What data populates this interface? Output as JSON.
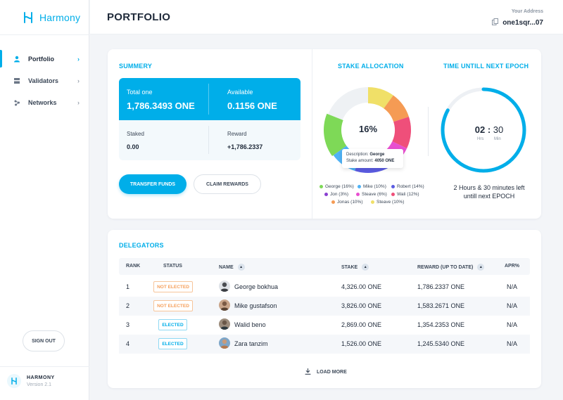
{
  "app": {
    "name": "Harmony"
  },
  "sidebar": {
    "items": [
      {
        "label": "Portfolio",
        "icon": "user-icon",
        "active": true
      },
      {
        "label": "Validators",
        "icon": "validators-icon",
        "active": false
      },
      {
        "label": "Networks",
        "icon": "network-icon",
        "active": false
      }
    ],
    "sign_out_label": "SIGN OUT",
    "footer": {
      "brand": "HARMONY",
      "version": "Version 2.1"
    }
  },
  "header": {
    "title": "PORTFOLIO",
    "address_label": "Your Address",
    "address_value": "one1sqr...07"
  },
  "summary": {
    "title": "SUMMERY",
    "total_label": "Total one",
    "total_value": "1,786.3493 ONE",
    "available_label": "Available",
    "available_value": "0.1156 ONE",
    "staked_label": "Staked",
    "staked_value": "0.00",
    "reward_label": "Reward",
    "reward_value": "+1,786.2337",
    "transfer_label": "TRANSFER FUNDS",
    "claim_label": "CLAIM REWARDS"
  },
  "stake": {
    "title": "STAKE ALLOCATION",
    "center_label": "16%",
    "tooltip_desc_label": "Description:",
    "tooltip_desc_value": "George",
    "tooltip_amount_label": "Stake amount:",
    "tooltip_amount_value": "4050 ONE",
    "legend": [
      {
        "label": "George (16%)",
        "color": "#7ed957"
      },
      {
        "label": "Mike (10%)",
        "color": "#4fb3f6"
      },
      {
        "label": "Robert (14%)",
        "color": "#5b5ce2"
      },
      {
        "label": "Jon (3%)",
        "color": "#8a3fd1"
      },
      {
        "label": "Steave (6%)",
        "color": "#e84fd0"
      },
      {
        "label": "Wali (12%)",
        "color": "#ef4f7a"
      },
      {
        "label": "Jonas (10%)",
        "color": "#f59b54"
      },
      {
        "label": "Steave (10%)",
        "color": "#f0e068"
      }
    ]
  },
  "epoch": {
    "title": "TIME UNTILL NEXT EPOCH",
    "hours": "02",
    "minutes": "30",
    "hours_unit": "Hrs",
    "minutes_unit": "Min",
    "caption_line1": "2 Hours & 30 minutes left",
    "caption_line2": "untill next EPOCH",
    "progress": 0.83,
    "color": "#00aee9"
  },
  "delegators": {
    "title": "DELEGATORS",
    "columns": [
      "RANK",
      "STATUS",
      "NAME",
      "STAKE",
      "REWARD (UP TO DATE)",
      "APR%"
    ],
    "rows": [
      {
        "rank": "1",
        "status": "NOT ELECTED",
        "name": "George bokhua",
        "stake": "4,326.00 ONE",
        "reward": "1,786.2337 ONE",
        "apr": "N/A"
      },
      {
        "rank": "2",
        "status": "NOT ELECTED",
        "name": "Mike gustafson",
        "stake": "3,826.00 ONE",
        "reward": "1,583.2671 ONE",
        "apr": "N/A"
      },
      {
        "rank": "3",
        "status": "ELECTED",
        "name": "Walid beno",
        "stake": "2,869.00 ONE",
        "reward": "1,354.2353 ONE",
        "apr": "N/A"
      },
      {
        "rank": "4",
        "status": "ELECTED",
        "name": "Zara tanzim",
        "stake": "1,526.00 ONE",
        "reward": "1,245.5340 ONE",
        "apr": "N/A"
      }
    ],
    "load_more_label": "LOAD MORE"
  },
  "colors": {
    "accent": "#00aee9",
    "not_elected": "#f5a05c"
  }
}
